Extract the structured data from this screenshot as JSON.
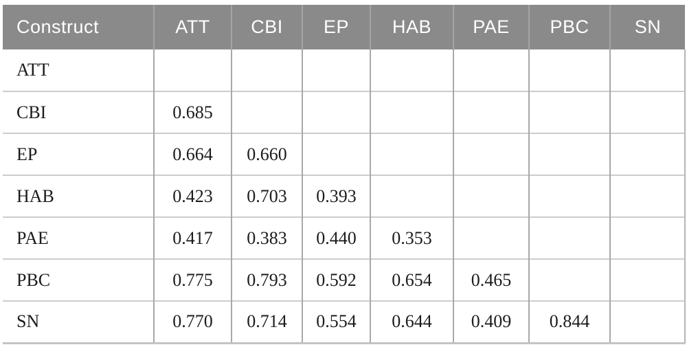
{
  "table": {
    "columns": [
      "Construct",
      "ATT",
      "CBI",
      "EP",
      "HAB",
      "PAE",
      "PBC",
      "SN"
    ],
    "rows": [
      {
        "label": "ATT",
        "values": [
          "",
          "",
          "",
          "",
          "",
          "",
          ""
        ]
      },
      {
        "label": "CBI",
        "values": [
          "0.685",
          "",
          "",
          "",
          "",
          "",
          ""
        ]
      },
      {
        "label": "EP",
        "values": [
          "0.664",
          "0.660",
          "",
          "",
          "",
          "",
          ""
        ]
      },
      {
        "label": "HAB",
        "values": [
          "0.423",
          "0.703",
          "0.393",
          "",
          "",
          "",
          ""
        ]
      },
      {
        "label": "PAE",
        "values": [
          "0.417",
          "0.383",
          "0.440",
          "0.353",
          "",
          "",
          ""
        ]
      },
      {
        "label": "PBC",
        "values": [
          "0.775",
          "0.793",
          "0.592",
          "0.654",
          "0.465",
          "",
          ""
        ]
      },
      {
        "label": "SN",
        "values": [
          "0.770",
          "0.714",
          "0.554",
          "0.644",
          "0.409",
          "0.844",
          ""
        ]
      }
    ]
  },
  "colors": {
    "header_bg": "#8a8a8a",
    "header_text": "#ffffff",
    "body_text": "#1c1c1c",
    "vertical_grid": "#a8a8a8",
    "horizontal_grid": "#cccccc",
    "bottom_border": "#c4c4c4"
  },
  "chart_data": {
    "type": "table",
    "title": "",
    "columns": [
      "Construct",
      "ATT",
      "CBI",
      "EP",
      "HAB",
      "PAE",
      "PBC",
      "SN"
    ],
    "rows": [
      [
        "ATT",
        "",
        "",
        "",
        "",
        "",
        "",
        ""
      ],
      [
        "CBI",
        "0.685",
        "",
        "",
        "",
        "",
        "",
        ""
      ],
      [
        "EP",
        "0.664",
        "0.660",
        "",
        "",
        "",
        "",
        ""
      ],
      [
        "HAB",
        "0.423",
        "0.703",
        "0.393",
        "",
        "",
        "",
        ""
      ],
      [
        "PAE",
        "0.417",
        "0.383",
        "0.440",
        "0.353",
        "",
        "",
        ""
      ],
      [
        "PBC",
        "0.775",
        "0.793",
        "0.592",
        "0.654",
        "0.465",
        "",
        ""
      ],
      [
        "SN",
        "0.770",
        "0.714",
        "0.554",
        "0.644",
        "0.409",
        "0.844",
        ""
      ]
    ]
  }
}
